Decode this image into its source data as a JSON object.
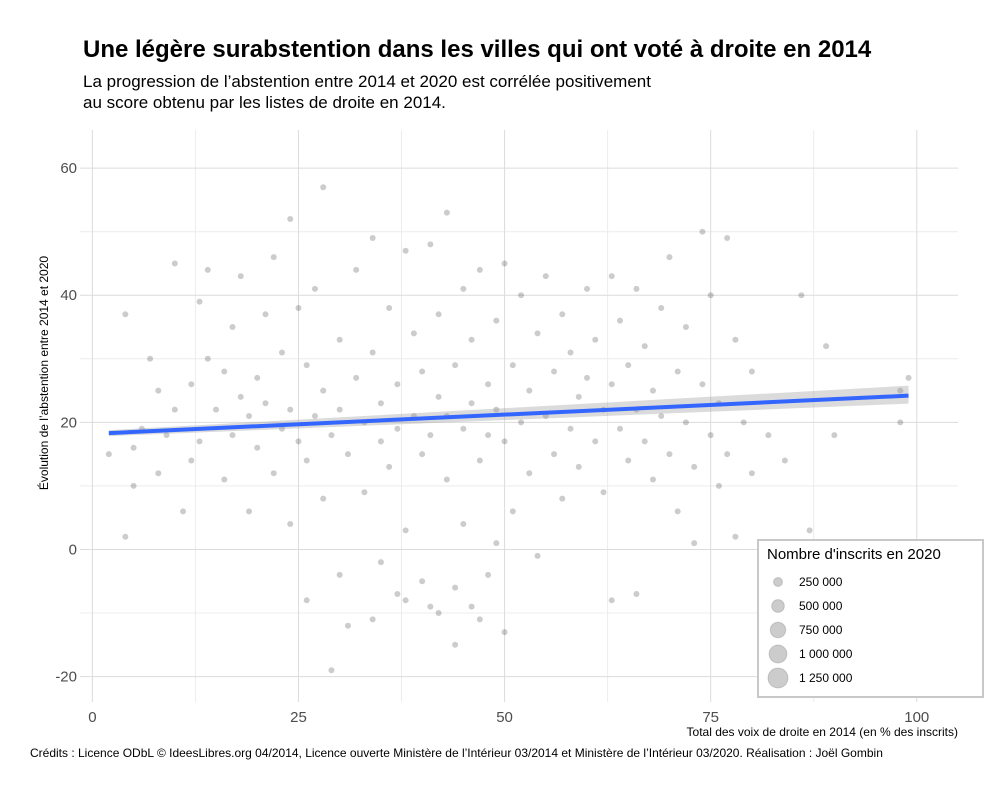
{
  "chart_data": {
    "type": "scatter",
    "title": "Une légère surabstention dans les villes qui ont voté à droite en 2014",
    "subtitle_lines": [
      "La progression de l’abstention entre 2014 et 2020 est corrélée positivement",
      "au score obtenu par les listes de droite en 2014."
    ],
    "xlabel": "Total des voix de droite en 2014 (en % des inscrits)",
    "ylabel": "Évolution de l’abstention entre 2014 et 2020",
    "caption": "Crédits : Licence ODbL © IdeesLibres.org 04/2014, Licence ouverte Ministère de l’Intérieur 03/2014 et Ministère de l’Intérieur 03/2020. Réalisation : Joël Gombin",
    "xlim": [
      -1.5,
      105
    ],
    "ylim": [
      -24,
      66
    ],
    "x_ticks": [
      0,
      25,
      50,
      75,
      100
    ],
    "x_tick_labels": [
      "0",
      "25",
      "50",
      "75",
      "100"
    ],
    "y_ticks": [
      -20,
      0,
      20,
      40,
      60
    ],
    "y_tick_labels": [
      "-20",
      "0",
      "20",
      "40",
      "60"
    ],
    "grid": true,
    "trend_line": {
      "method": "linear",
      "x": [
        2,
        99
      ],
      "y": [
        18.3,
        24.2
      ],
      "color": "#3366ff"
    },
    "legend": {
      "title": "Nombre d'inscrits en 2020",
      "position": "bottom-right",
      "entries": [
        {
          "label": "250 000",
          "value": 250000
        },
        {
          "label": "500 000",
          "value": 500000
        },
        {
          "label": "750 000",
          "value": 750000
        },
        {
          "label": "1 000 000",
          "value": 1000000
        },
        {
          "label": "1 250 000",
          "value": 1250000
        }
      ]
    },
    "point_color": "#000000",
    "point_alpha": 0.2,
    "series": [
      {
        "points": [
          [
            2,
            15
          ],
          [
            4,
            37
          ],
          [
            4,
            2
          ],
          [
            5,
            10
          ],
          [
            5,
            16
          ],
          [
            6,
            19
          ],
          [
            7,
            30
          ],
          [
            8,
            25
          ],
          [
            8,
            12
          ],
          [
            9,
            18
          ],
          [
            10,
            45
          ],
          [
            10,
            22
          ],
          [
            11,
            6
          ],
          [
            12,
            26
          ],
          [
            12,
            14
          ],
          [
            13,
            39
          ],
          [
            13,
            17
          ],
          [
            14,
            30
          ],
          [
            14,
            44
          ],
          [
            15,
            22
          ],
          [
            16,
            11
          ],
          [
            16,
            28
          ],
          [
            17,
            18
          ],
          [
            17,
            35
          ],
          [
            18,
            24
          ],
          [
            18,
            43
          ],
          [
            19,
            6
          ],
          [
            19,
            21
          ],
          [
            20,
            27
          ],
          [
            20,
            16
          ],
          [
            21,
            37
          ],
          [
            21,
            23
          ],
          [
            22,
            12
          ],
          [
            22,
            46
          ],
          [
            23,
            19
          ],
          [
            23,
            31
          ],
          [
            24,
            52
          ],
          [
            24,
            4
          ],
          [
            24,
            22
          ],
          [
            25,
            17
          ],
          [
            25,
            38
          ],
          [
            26,
            29
          ],
          [
            26,
            -8
          ],
          [
            26,
            14
          ],
          [
            27,
            21
          ],
          [
            27,
            41
          ],
          [
            28,
            57
          ],
          [
            28,
            8
          ],
          [
            28,
            25
          ],
          [
            29,
            -19
          ],
          [
            29,
            18
          ],
          [
            30,
            33
          ],
          [
            30,
            -4
          ],
          [
            30,
            22
          ],
          [
            31,
            -12
          ],
          [
            31,
            15
          ],
          [
            32,
            44
          ],
          [
            32,
            27
          ],
          [
            33,
            9
          ],
          [
            33,
            20
          ],
          [
            34,
            49
          ],
          [
            34,
            -11
          ],
          [
            34,
            31
          ],
          [
            35,
            17
          ],
          [
            35,
            -2
          ],
          [
            35,
            23
          ],
          [
            36,
            38
          ],
          [
            36,
            13
          ],
          [
            37,
            -7
          ],
          [
            37,
            26
          ],
          [
            37,
            19
          ],
          [
            38,
            47
          ],
          [
            38,
            -8
          ],
          [
            38,
            3
          ],
          [
            39,
            21
          ],
          [
            39,
            34
          ],
          [
            40,
            -5
          ],
          [
            40,
            15
          ],
          [
            40,
            28
          ],
          [
            41,
            48
          ],
          [
            41,
            -9
          ],
          [
            41,
            18
          ],
          [
            42,
            24
          ],
          [
            42,
            -10
          ],
          [
            42,
            37
          ],
          [
            43,
            53
          ],
          [
            43,
            11
          ],
          [
            43,
            21
          ],
          [
            44,
            -15
          ],
          [
            44,
            29
          ],
          [
            44,
            -6
          ],
          [
            45,
            19
          ],
          [
            45,
            41
          ],
          [
            45,
            4
          ],
          [
            46,
            23
          ],
          [
            46,
            -9
          ],
          [
            46,
            33
          ],
          [
            47,
            14
          ],
          [
            47,
            -11
          ],
          [
            47,
            44
          ],
          [
            48,
            26
          ],
          [
            48,
            -4
          ],
          [
            48,
            18
          ],
          [
            49,
            36
          ],
          [
            49,
            1
          ],
          [
            49,
            22
          ],
          [
            50,
            -13
          ],
          [
            50,
            45
          ],
          [
            50,
            17
          ],
          [
            51,
            29
          ],
          [
            51,
            6
          ],
          [
            52,
            20
          ],
          [
            52,
            40
          ],
          [
            53,
            12
          ],
          [
            53,
            25
          ],
          [
            54,
            34
          ],
          [
            54,
            -1
          ],
          [
            55,
            21
          ],
          [
            55,
            43
          ],
          [
            56,
            15
          ],
          [
            56,
            28
          ],
          [
            57,
            37
          ],
          [
            57,
            8
          ],
          [
            58,
            19
          ],
          [
            58,
            31
          ],
          [
            59,
            24
          ],
          [
            59,
            13
          ],
          [
            60,
            41
          ],
          [
            60,
            27
          ],
          [
            61,
            17
          ],
          [
            61,
            33
          ],
          [
            62,
            22
          ],
          [
            62,
            9
          ],
          [
            63,
            43
          ],
          [
            63,
            -8
          ],
          [
            63,
            26
          ],
          [
            64,
            19
          ],
          [
            64,
            36
          ],
          [
            65,
            14
          ],
          [
            65,
            29
          ],
          [
            66,
            22
          ],
          [
            66,
            -7
          ],
          [
            66,
            41
          ],
          [
            67,
            17
          ],
          [
            67,
            32
          ],
          [
            68,
            25
          ],
          [
            68,
            11
          ],
          [
            69,
            38
          ],
          [
            69,
            21
          ],
          [
            70,
            15
          ],
          [
            70,
            46
          ],
          [
            71,
            28
          ],
          [
            71,
            6
          ],
          [
            72,
            20
          ],
          [
            72,
            35
          ],
          [
            73,
            13
          ],
          [
            73,
            1
          ],
          [
            74,
            26
          ],
          [
            74,
            50
          ],
          [
            75,
            18
          ],
          [
            75,
            40
          ],
          [
            76,
            23
          ],
          [
            76,
            10
          ],
          [
            77,
            15
          ],
          [
            77,
            49
          ],
          [
            78,
            2
          ],
          [
            78,
            33
          ],
          [
            79,
            20
          ],
          [
            80,
            12
          ],
          [
            80,
            28
          ],
          [
            81,
            -2
          ],
          [
            82,
            18
          ],
          [
            84,
            14
          ],
          [
            86,
            40
          ],
          [
            87,
            3
          ],
          [
            89,
            32
          ],
          [
            90,
            18
          ],
          [
            98,
            20
          ],
          [
            99,
            27
          ],
          [
            98,
            25
          ]
        ]
      }
    ]
  }
}
